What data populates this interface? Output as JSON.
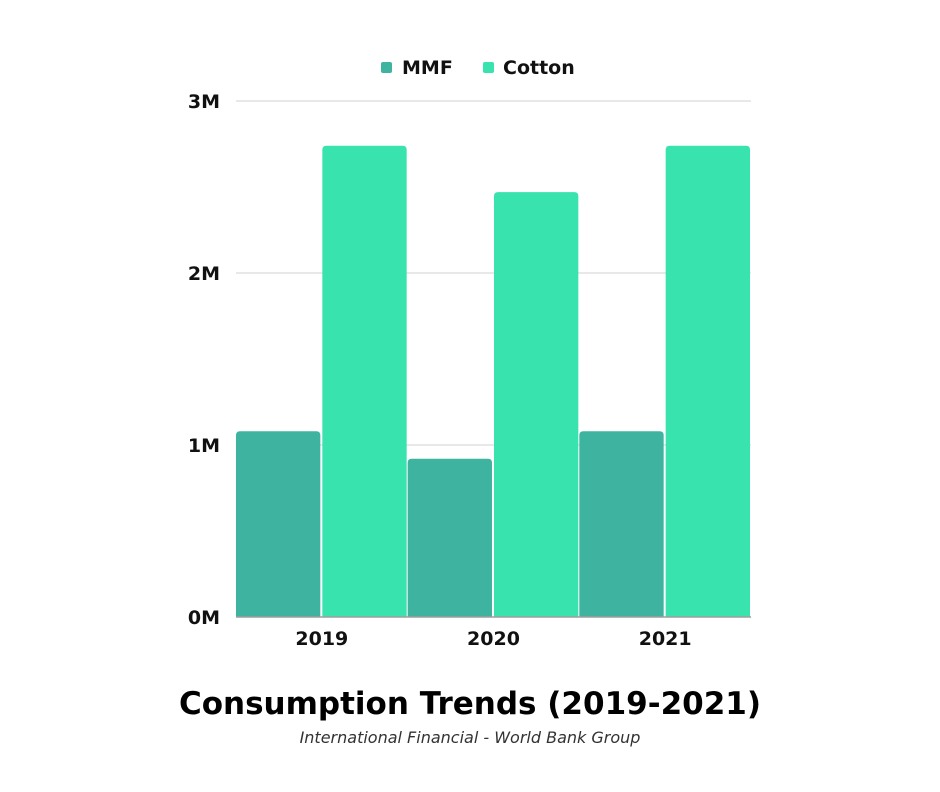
{
  "chart_data": {
    "type": "bar",
    "title": "Consumption Trends (2019-2021)",
    "subtitle": "International Financial - World Bank Group",
    "categories": [
      "2019",
      "2020",
      "2021"
    ],
    "series": [
      {
        "name": "MMF",
        "color": "#3eb4a0",
        "values": [
          1080000,
          920000,
          1080000
        ]
      },
      {
        "name": "Cotton",
        "color": "#39e3ae",
        "values": [
          2740000,
          2470000,
          2740000
        ]
      }
    ],
    "y_ticks": [
      {
        "value": 0,
        "label": "0M"
      },
      {
        "value": 1000000,
        "label": "1M"
      },
      {
        "value": 2000000,
        "label": "2M"
      },
      {
        "value": 3000000,
        "label": "3M"
      }
    ],
    "ylim": [
      0,
      3000000
    ],
    "grid": true,
    "legend_position": "top-center",
    "grid_color": "#e0e0e0"
  }
}
